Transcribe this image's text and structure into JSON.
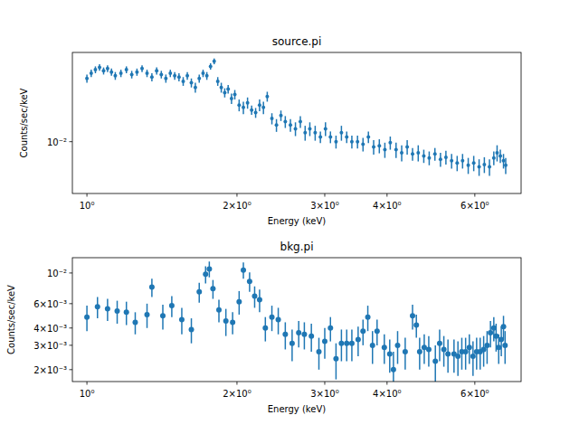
{
  "chart_data": [
    {
      "type": "scatter",
      "title": "source.pi",
      "x_label": "Energy (keV)",
      "y_label": "Counts/sec/keV",
      "log": true,
      "color": "#1f77b4",
      "marker": "circle",
      "xlim": [
        0.935,
        7.43
      ],
      "ylim": [
        0.0035,
        0.061
      ],
      "xticks": [
        {
          "value": 1,
          "label": "10⁰"
        },
        {
          "value": 2,
          "label": "2×10⁰"
        },
        {
          "value": 3,
          "label": "3×10⁰"
        },
        {
          "value": 4,
          "label": "4×10⁰"
        },
        {
          "value": 6,
          "label": "6×10⁰"
        }
      ],
      "yticks": [
        {
          "value": 0.01,
          "label": "10⁻²"
        }
      ],
      "x": [
        1.0,
        1.02,
        1.04,
        1.06,
        1.08,
        1.1,
        1.12,
        1.14,
        1.17,
        1.2,
        1.23,
        1.26,
        1.29,
        1.32,
        1.35,
        1.38,
        1.41,
        1.44,
        1.47,
        1.5,
        1.53,
        1.56,
        1.59,
        1.62,
        1.65,
        1.68,
        1.71,
        1.74,
        1.77,
        1.8,
        1.83,
        1.86,
        1.89,
        1.92,
        1.95,
        1.98,
        2.02,
        2.06,
        2.1,
        2.14,
        2.18,
        2.22,
        2.26,
        2.3,
        2.35,
        2.4,
        2.45,
        2.5,
        2.56,
        2.62,
        2.68,
        2.74,
        2.8,
        2.87,
        2.94,
        3.01,
        3.08,
        3.16,
        3.24,
        3.32,
        3.4,
        3.49,
        3.58,
        3.67,
        3.76,
        3.86,
        3.96,
        4.06,
        4.17,
        4.28,
        4.39,
        4.5,
        4.62,
        4.74,
        4.86,
        4.99,
        5.12,
        5.25,
        5.39,
        5.53,
        5.67,
        5.82,
        5.97,
        6.12,
        6.27,
        6.42,
        6.55,
        6.65,
        6.75,
        6.85,
        6.92
      ],
      "values": [
        0.036,
        0.04,
        0.043,
        0.045,
        0.042,
        0.044,
        0.041,
        0.038,
        0.04,
        0.043,
        0.039,
        0.041,
        0.044,
        0.04,
        0.037,
        0.042,
        0.039,
        0.036,
        0.04,
        0.038,
        0.037,
        0.034,
        0.038,
        0.033,
        0.03,
        0.036,
        0.04,
        0.038,
        0.046,
        0.051,
        0.034,
        0.03,
        0.027,
        0.029,
        0.024,
        0.026,
        0.021,
        0.02,
        0.022,
        0.019,
        0.018,
        0.021,
        0.02,
        0.025,
        0.016,
        0.014,
        0.017,
        0.015,
        0.014,
        0.013,
        0.015,
        0.012,
        0.013,
        0.012,
        0.011,
        0.013,
        0.011,
        0.01,
        0.012,
        0.011,
        0.01,
        0.01,
        0.0095,
        0.011,
        0.009,
        0.0092,
        0.0085,
        0.0098,
        0.0085,
        0.008,
        0.009,
        0.0078,
        0.008,
        0.0075,
        0.0072,
        0.0078,
        0.007,
        0.0073,
        0.0068,
        0.0065,
        0.0068,
        0.0062,
        0.0065,
        0.006,
        0.0063,
        0.006,
        0.0072,
        0.008,
        0.0075,
        0.0068,
        0.0062
      ],
      "errors": [
        0.003,
        0.003,
        0.003,
        0.003,
        0.003,
        0.003,
        0.003,
        0.003,
        0.003,
        0.003,
        0.003,
        0.003,
        0.003,
        0.003,
        0.003,
        0.003,
        0.003,
        0.003,
        0.003,
        0.003,
        0.003,
        0.003,
        0.003,
        0.003,
        0.003,
        0.003,
        0.003,
        0.003,
        0.003,
        0.003,
        0.003,
        0.003,
        0.0025,
        0.0025,
        0.0025,
        0.0025,
        0.0025,
        0.0025,
        0.0025,
        0.0018,
        0.0018,
        0.0025,
        0.0025,
        0.0025,
        0.0018,
        0.0018,
        0.0018,
        0.0018,
        0.0018,
        0.0018,
        0.0018,
        0.0018,
        0.0018,
        0.0018,
        0.0013,
        0.0018,
        0.0013,
        0.0013,
        0.0018,
        0.0013,
        0.0013,
        0.0013,
        0.0013,
        0.0013,
        0.0013,
        0.0013,
        0.0013,
        0.0013,
        0.0013,
        0.0013,
        0.0013,
        0.001,
        0.0013,
        0.001,
        0.001,
        0.001,
        0.001,
        0.001,
        0.001,
        0.001,
        0.001,
        0.001,
        0.001,
        0.001,
        0.001,
        0.001,
        0.001,
        0.0013,
        0.001,
        0.001,
        0.001
      ]
    },
    {
      "type": "scatter",
      "title": "bkg.pi",
      "x_label": "Energy (keV)",
      "y_label": "Counts/sec/keV",
      "log": true,
      "color": "#1f77b4",
      "marker": "circle",
      "xlim": [
        0.935,
        7.43
      ],
      "ylim": [
        0.00164,
        0.0129
      ],
      "xticks": [
        {
          "value": 1,
          "label": "10⁰"
        },
        {
          "value": 2,
          "label": "2×10⁰"
        },
        {
          "value": 3,
          "label": "3×10⁰"
        },
        {
          "value": 4,
          "label": "4×10⁰"
        },
        {
          "value": 6,
          "label": "6×10⁰"
        }
      ],
      "yticks": [
        {
          "value": 0.002,
          "label": "2×10⁻³"
        },
        {
          "value": 0.003,
          "label": "3×10⁻³"
        },
        {
          "value": 0.004,
          "label": "4×10⁻³"
        },
        {
          "value": 0.006,
          "label": "6×10⁻³"
        },
        {
          "value": 0.01,
          "label": "10⁻²"
        }
      ],
      "x": [
        1.0,
        1.05,
        1.1,
        1.15,
        1.2,
        1.25,
        1.32,
        1.35,
        1.42,
        1.48,
        1.55,
        1.62,
        1.68,
        1.73,
        1.76,
        1.79,
        1.84,
        1.9,
        1.96,
        2.02,
        2.06,
        2.12,
        2.17,
        2.22,
        2.28,
        2.35,
        2.42,
        2.5,
        2.58,
        2.66,
        2.73,
        2.82,
        2.92,
        3.0,
        3.08,
        3.16,
        3.24,
        3.32,
        3.4,
        3.5,
        3.58,
        3.66,
        3.74,
        3.82,
        3.95,
        4.05,
        4.12,
        4.2,
        4.35,
        4.5,
        4.58,
        4.65,
        4.75,
        4.85,
        5.0,
        5.1,
        5.2,
        5.3,
        5.45,
        5.55,
        5.65,
        5.75,
        5.85,
        5.95,
        6.05,
        6.15,
        6.25,
        6.35,
        6.45,
        6.55,
        6.62,
        6.7,
        6.78,
        6.85,
        6.9
      ],
      "values": [
        0.0048,
        0.0057,
        0.0055,
        0.0053,
        0.0052,
        0.0044,
        0.005,
        0.0079,
        0.0049,
        0.0058,
        0.0046,
        0.0039,
        0.0073,
        0.0098,
        0.0107,
        0.0077,
        0.0054,
        0.0045,
        0.0044,
        0.0062,
        0.0105,
        0.0087,
        0.0068,
        0.0064,
        0.004,
        0.0048,
        0.0046,
        0.0036,
        0.0031,
        0.0037,
        0.0036,
        0.0035,
        0.0027,
        0.0032,
        0.004,
        0.0024,
        0.0031,
        0.0031,
        0.0031,
        0.0033,
        0.0038,
        0.0048,
        0.003,
        0.0038,
        0.0029,
        0.0026,
        0.002,
        0.003,
        0.0027,
        0.0049,
        0.0042,
        0.0027,
        0.0029,
        0.0028,
        0.0023,
        0.0031,
        0.0028,
        0.0026,
        0.0026,
        0.0025,
        0.0027,
        0.0027,
        0.0029,
        0.0025,
        0.0027,
        0.0027,
        0.0028,
        0.003,
        0.0037,
        0.004,
        0.0035,
        0.0029,
        0.0033,
        0.0041,
        0.003
      ],
      "errors": [
        0.001,
        0.001,
        0.001,
        0.001,
        0.001,
        0.0008,
        0.001,
        0.0012,
        0.001,
        0.001,
        0.001,
        0.0008,
        0.0012,
        0.0014,
        0.0014,
        0.0012,
        0.001,
        0.001,
        0.0008,
        0.0012,
        0.0014,
        0.0014,
        0.0012,
        0.0012,
        0.0008,
        0.001,
        0.001,
        0.0008,
        0.0008,
        0.0008,
        0.0008,
        0.0008,
        0.0007,
        0.0008,
        0.0008,
        0.0007,
        0.0008,
        0.0008,
        0.0008,
        0.0008,
        0.0008,
        0.001,
        0.0008,
        0.0008,
        0.0007,
        0.0007,
        0.0007,
        0.0008,
        0.0007,
        0.001,
        0.0008,
        0.0007,
        0.0007,
        0.0007,
        0.0007,
        0.0008,
        0.0007,
        0.0007,
        0.0007,
        0.0007,
        0.0007,
        0.0007,
        0.0007,
        0.0007,
        0.0007,
        0.0007,
        0.0007,
        0.0008,
        0.0008,
        0.0008,
        0.0008,
        0.0007,
        0.0008,
        0.0008,
        0.0008
      ]
    }
  ]
}
